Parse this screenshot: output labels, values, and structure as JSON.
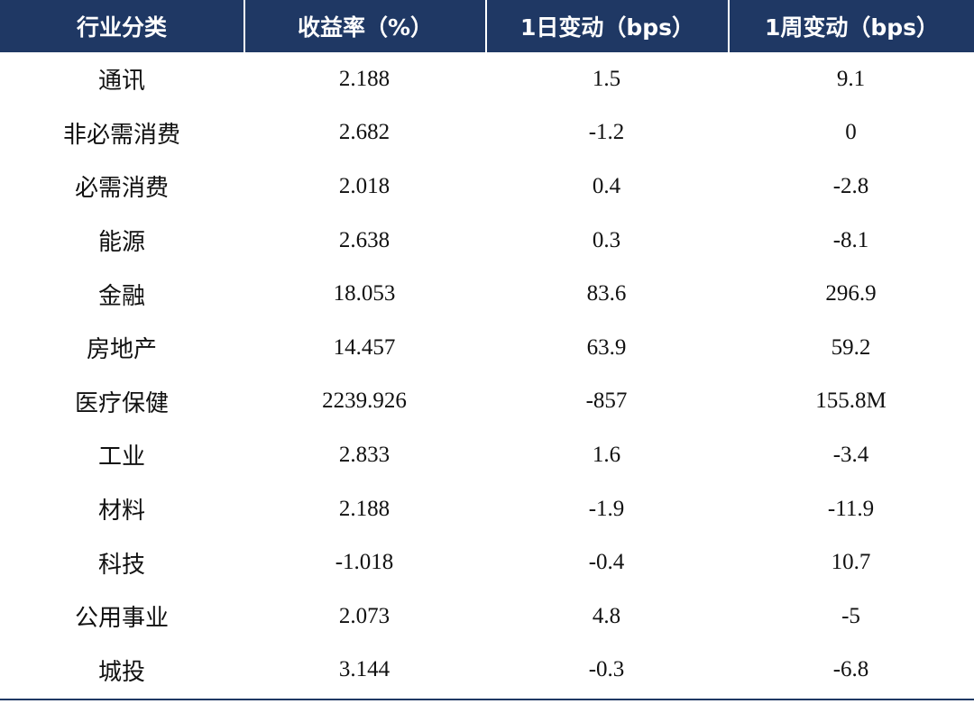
{
  "table": {
    "headers": [
      "行业分类",
      "收益率（%）",
      "1日变动（bps）",
      "1周变动（bps）"
    ],
    "rows": [
      [
        "通讯",
        "2.188",
        "1.5",
        "9.1"
      ],
      [
        "非必需消费",
        "2.682",
        "-1.2",
        "0"
      ],
      [
        "必需消费",
        "2.018",
        "0.4",
        "-2.8"
      ],
      [
        "能源",
        "2.638",
        "0.3",
        "-8.1"
      ],
      [
        "金融",
        "18.053",
        "83.6",
        "296.9"
      ],
      [
        "房地产",
        "14.457",
        "63.9",
        "59.2"
      ],
      [
        "医疗保健",
        "2239.926",
        "-857",
        "155.8M"
      ],
      [
        "工业",
        "2.833",
        "1.6",
        "-3.4"
      ],
      [
        "材料",
        "2.188",
        "-1.9",
        "-11.9"
      ],
      [
        "科技",
        "-1.018",
        "-0.4",
        "10.7"
      ],
      [
        "公用事业",
        "2.073",
        "4.8",
        "-5"
      ],
      [
        "城投",
        "3.144",
        "-0.3",
        "-6.8"
      ]
    ]
  },
  "colors": {
    "header_background": "#1f3864",
    "header_text": "#ffffff",
    "body_text": "#111111"
  }
}
